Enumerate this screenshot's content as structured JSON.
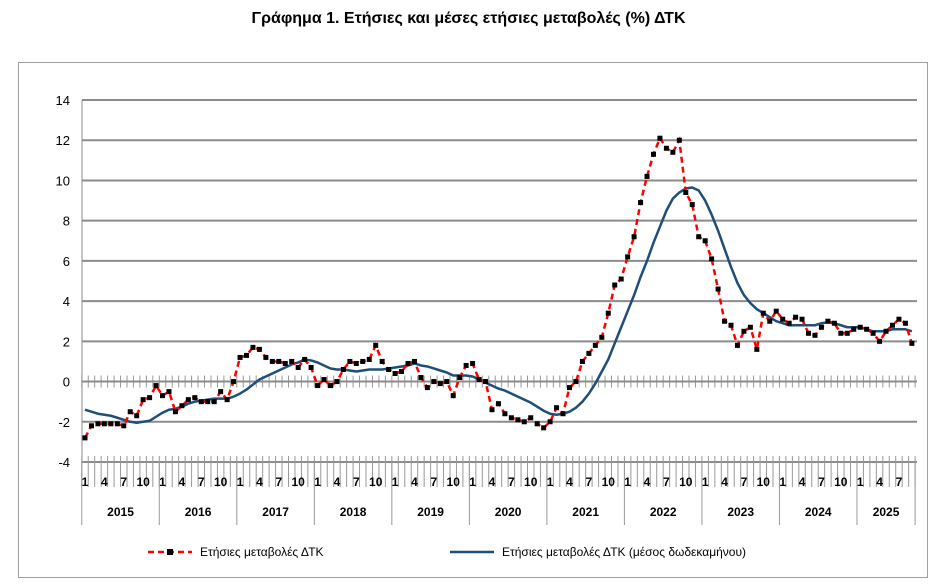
{
  "chart_data": {
    "type": "line",
    "title": "Γράφημα 1. Ετήσιες και μέσες ετήσιες μεταβολές (%) ΔΤΚ",
    "xlabel": "",
    "ylabel": "",
    "ylim": [
      -4,
      14
    ],
    "yticks": [
      -4,
      -2,
      0,
      2,
      4,
      6,
      8,
      10,
      12,
      14
    ],
    "grid": true,
    "legend_position": "bottom",
    "years": [
      "2015",
      "2016",
      "2017",
      "2018",
      "2019",
      "2020",
      "2021",
      "2022",
      "2023",
      "2024",
      "2025"
    ],
    "month_tick_labels": [
      "1",
      "4",
      "7",
      "10"
    ],
    "start": "2015-01",
    "frequency": "monthly",
    "series": [
      {
        "name": "Ετήσιες μεταβολές ΔΤΚ",
        "color": "#ff0000",
        "marker_color": "#000000",
        "style": "dashed-with-square-markers",
        "values": [
          -2.8,
          -2.2,
          -2.1,
          -2.1,
          -2.1,
          -2.1,
          -2.2,
          -1.5,
          -1.7,
          -0.9,
          -0.8,
          -0.2,
          -0.7,
          -0.5,
          -1.5,
          -1.2,
          -0.9,
          -0.8,
          -1.0,
          -1.0,
          -1.0,
          -0.5,
          -0.9,
          0.0,
          1.2,
          1.3,
          1.7,
          1.6,
          1.2,
          1.0,
          1.0,
          0.9,
          1.0,
          0.7,
          1.1,
          0.7,
          -0.2,
          0.1,
          -0.2,
          0.0,
          0.6,
          1.0,
          0.9,
          1.0,
          1.1,
          1.8,
          1.0,
          0.6,
          0.4,
          0.5,
          0.9,
          1.0,
          0.2,
          -0.3,
          0.0,
          -0.1,
          0.0,
          -0.7,
          0.2,
          0.8,
          0.9,
          0.1,
          0.0,
          -1.4,
          -1.1,
          -1.6,
          -1.8,
          -1.9,
          -2.0,
          -1.8,
          -2.1,
          -2.3,
          -2.0,
          -1.3,
          -1.6,
          -0.3,
          0.0,
          1.0,
          1.4,
          1.8,
          2.2,
          3.4,
          4.8,
          5.1,
          6.2,
          7.2,
          8.9,
          10.2,
          11.3,
          12.1,
          11.6,
          11.4,
          12.0,
          9.4,
          8.8,
          7.2,
          7.0,
          6.1,
          4.6,
          3.0,
          2.8,
          1.8,
          2.5,
          2.7,
          1.6,
          3.4,
          3.0,
          3.5,
          3.1,
          2.9,
          3.2,
          3.1,
          2.4,
          2.3,
          2.7,
          3.0,
          2.9,
          2.4,
          2.4,
          2.6,
          2.7,
          2.6,
          2.4,
          2.0,
          2.5,
          2.8,
          3.1,
          2.9,
          1.9
        ]
      },
      {
        "name": "Ετήσιες μεταβολές ΔΤΚ (μέσος δωδεκαμήνου)",
        "color": "#1f4e79",
        "style": "solid",
        "values": [
          -1.4,
          -1.5,
          -1.6,
          -1.65,
          -1.7,
          -1.8,
          -1.9,
          -2.0,
          -2.05,
          -2.0,
          -1.95,
          -1.75,
          -1.55,
          -1.4,
          -1.35,
          -1.25,
          -1.1,
          -1.0,
          -0.95,
          -0.9,
          -0.85,
          -0.85,
          -0.85,
          -0.75,
          -0.6,
          -0.4,
          -0.15,
          0.1,
          0.25,
          0.4,
          0.55,
          0.7,
          0.85,
          0.95,
          1.1,
          1.05,
          0.95,
          0.8,
          0.65,
          0.6,
          0.6,
          0.55,
          0.5,
          0.55,
          0.6,
          0.6,
          0.6,
          0.65,
          0.7,
          0.75,
          0.8,
          0.9,
          0.8,
          0.75,
          0.65,
          0.55,
          0.45,
          0.3,
          0.3,
          0.3,
          0.25,
          0.1,
          -0.05,
          -0.2,
          -0.35,
          -0.45,
          -0.6,
          -0.75,
          -0.9,
          -1.05,
          -1.25,
          -1.45,
          -1.6,
          -1.65,
          -1.6,
          -1.5,
          -1.3,
          -1.0,
          -0.6,
          -0.1,
          0.5,
          1.1,
          1.9,
          2.7,
          3.5,
          4.3,
          5.2,
          6.0,
          6.9,
          7.7,
          8.5,
          9.1,
          9.4,
          9.6,
          9.65,
          9.5,
          9.0,
          8.3,
          7.5,
          6.6,
          5.7,
          4.9,
          4.3,
          3.9,
          3.6,
          3.4,
          3.2,
          3.0,
          2.9,
          2.8,
          2.8,
          2.8,
          2.8,
          2.8,
          2.9,
          2.95,
          2.9,
          2.8,
          2.7,
          2.7,
          2.7,
          2.6,
          2.5,
          2.5,
          2.5,
          2.6,
          2.6,
          2.6,
          2.5
        ]
      }
    ]
  }
}
